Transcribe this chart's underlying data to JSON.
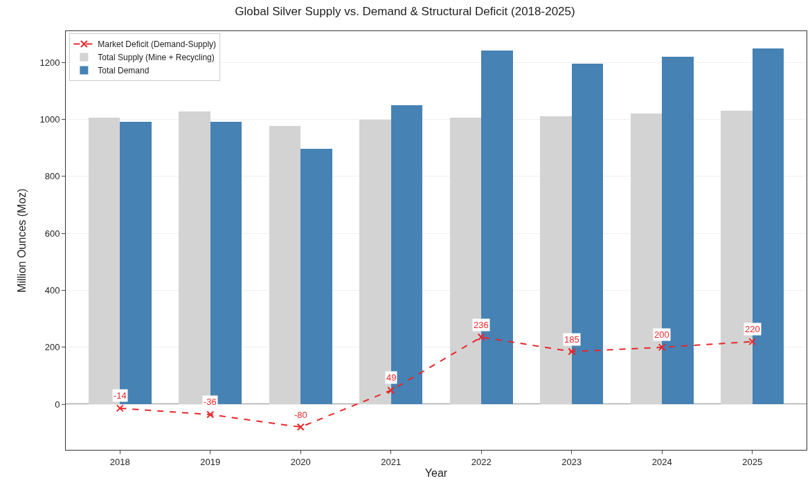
{
  "chart_data": {
    "type": "bar",
    "title": "Global Silver Supply vs. Demand & Structural Deficit (2018-2025)",
    "xlabel": "Year",
    "ylabel": "Million Ounces (Moz)",
    "categories": [
      "2018",
      "2019",
      "2020",
      "2021",
      "2022",
      "2023",
      "2024",
      "2025"
    ],
    "series": [
      {
        "name": "Market Deficit (Demand-Supply)",
        "type": "line",
        "color": "#e8262a",
        "values": [
          -14,
          -36,
          -80,
          49,
          236,
          185,
          200,
          220
        ],
        "marker": "cross",
        "line_style": "dashed",
        "data_labels": true
      },
      {
        "name": "Total Supply (Mine + Recycling)",
        "color": "#d3d3d3",
        "values": [
          1006,
          1028,
          977,
          1000,
          1006,
          1010,
          1020,
          1030
        ]
      },
      {
        "name": "Total Demand",
        "color": "#4682b4",
        "values": [
          992,
          992,
          897,
          1049,
          1242,
          1195,
          1220,
          1250
        ]
      }
    ],
    "ylim": [
      -160,
      1310
    ],
    "yticks": [
      0,
      200,
      400,
      600,
      800,
      1000,
      1200
    ],
    "ref_lines": [
      {
        "axis": "y",
        "value": 0,
        "color": "#333333"
      }
    ],
    "grid": "y",
    "legend": "top left"
  }
}
